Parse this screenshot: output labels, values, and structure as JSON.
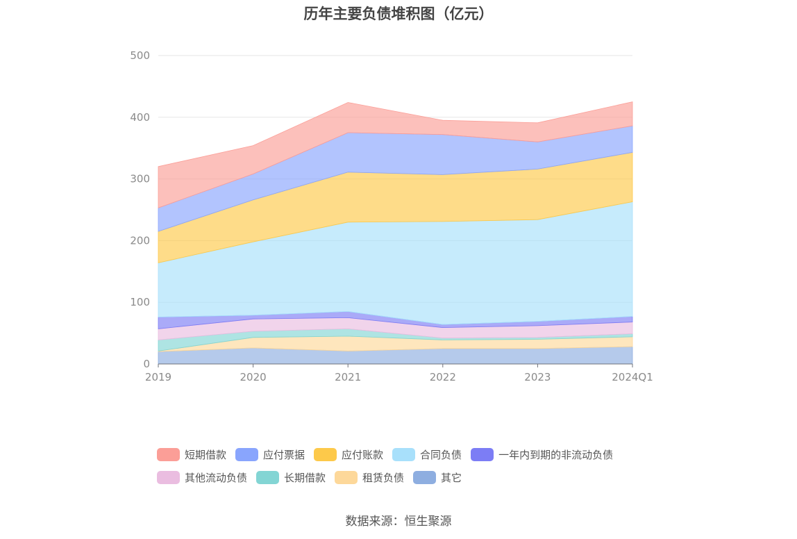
{
  "chart_data": {
    "type": "area",
    "stacked": true,
    "title": "历年主要负债堆积图（亿元）",
    "categories": [
      "2019",
      "2020",
      "2021",
      "2022",
      "2023",
      "2024Q1"
    ],
    "ylim": [
      0,
      500
    ],
    "yticks": [
      "0",
      "100",
      "200",
      "300",
      "400",
      "500"
    ],
    "grid": true,
    "legend_position": "bottom",
    "series": [
      {
        "name": "其它",
        "color": "#8eaee0",
        "values": [
          20,
          26,
          21,
          25,
          25,
          28
        ]
      },
      {
        "name": "租赁负债",
        "color": "#fdd89a",
        "values": [
          1,
          17,
          24,
          14,
          15,
          16
        ]
      },
      {
        "name": "长期借款",
        "color": "#83d5d4",
        "values": [
          18,
          10,
          12,
          3,
          3,
          5
        ]
      },
      {
        "name": "其他流动负债",
        "color": "#eabde0",
        "values": [
          18,
          20,
          18,
          17,
          19,
          19
        ]
      },
      {
        "name": "一年内到期的非流动负债",
        "color": "#7c7df5",
        "values": [
          19,
          6,
          10,
          5,
          7,
          9
        ]
      },
      {
        "name": "合同负债",
        "color": "#a8e0fb",
        "values": [
          88,
          119,
          145,
          167,
          165,
          186
        ]
      },
      {
        "name": "应付账款",
        "color": "#fdc94a",
        "values": [
          51,
          68,
          81,
          76,
          82,
          80
        ]
      },
      {
        "name": "应付票据",
        "color": "#89a5fd",
        "values": [
          38,
          42,
          64,
          65,
          44,
          43
        ]
      },
      {
        "name": "短期借款",
        "color": "#fb9e97",
        "values": [
          67,
          46,
          49,
          23,
          31,
          39
        ]
      }
    ]
  },
  "legend": {
    "rows": [
      [
        {
          "label": "短期借款",
          "color": "#fb9e97"
        },
        {
          "label": "应付票据",
          "color": "#89a5fd"
        },
        {
          "label": "应付账款",
          "color": "#fdc94a"
        },
        {
          "label": "合同负债",
          "color": "#a8e0fb"
        },
        {
          "label": "一年内到期的非流动负债",
          "color": "#7c7df5"
        }
      ],
      [
        {
          "label": "其他流动负债",
          "color": "#eabde0"
        },
        {
          "label": "长期借款",
          "color": "#83d5d4"
        },
        {
          "label": "租赁负债",
          "color": "#fdd89a"
        },
        {
          "label": "其它",
          "color": "#8eaee0"
        }
      ]
    ]
  },
  "source": "数据来源：恒生聚源"
}
